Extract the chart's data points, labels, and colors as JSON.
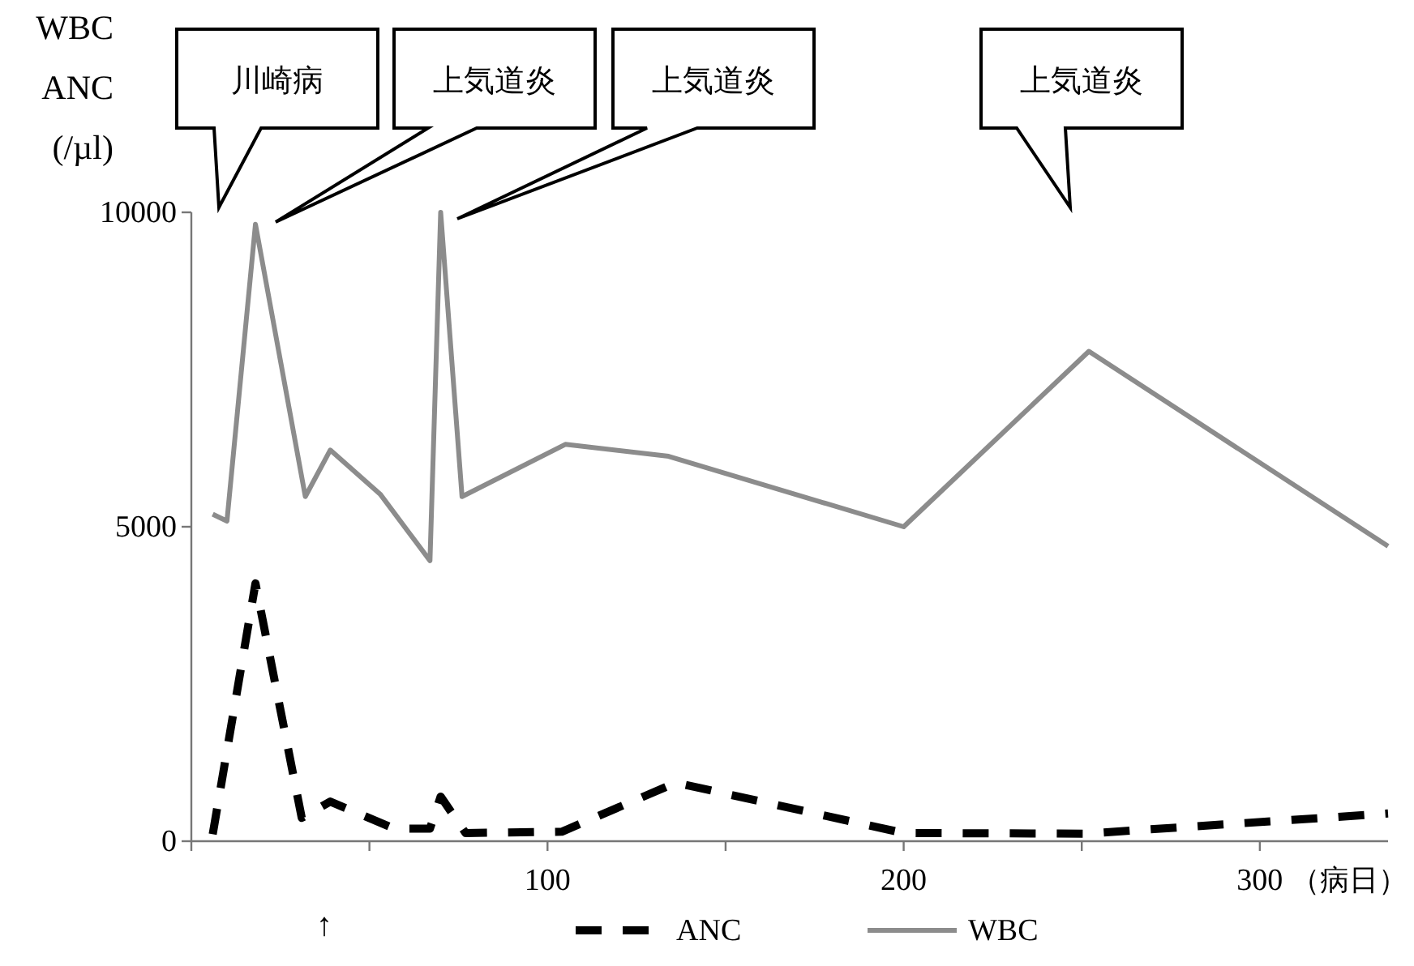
{
  "chart_data": {
    "type": "line",
    "ylabel": "WBC\nANC\n(/µl)",
    "xlabel": "（病日）",
    "xlim": [
      0,
      336
    ],
    "xticks": [
      {
        "value": 0,
        "label": null
      },
      {
        "value": 50,
        "label": null
      },
      100,
      {
        "value": 150,
        "label": null
      },
      200,
      {
        "value": 250,
        "label": null
      },
      300
    ],
    "ylim": [
      0,
      10000
    ],
    "yticks": [
      0,
      5000,
      10000
    ],
    "series": [
      {
        "name": "ANC",
        "color": "#000000",
        "line_style": "dashed",
        "x": [
          6,
          18,
          31,
          39,
          57,
          67,
          70,
          77,
          104,
          136,
          200,
          251,
          336
        ],
        "values": [
          110,
          4100,
          370,
          630,
          200,
          200,
          710,
          130,
          150,
          930,
          130,
          120,
          440
        ]
      },
      {
        "name": "WBC",
        "color": "#8c8c8c",
        "line_style": "solid",
        "x": [
          6,
          10,
          18,
          32,
          39,
          53,
          67,
          70,
          76,
          105,
          134,
          200,
          252,
          336
        ],
        "values": [
          5200,
          5090,
          9810,
          5480,
          6220,
          5520,
          4460,
          10000,
          5480,
          6310,
          6120,
          5000,
          7790,
          4690
        ]
      }
    ],
    "annotations": [
      "川崎病",
      "上気道炎",
      "上気道炎",
      "上気道炎",
      "↑"
    ],
    "legend": "bottom",
    "grid": false
  }
}
